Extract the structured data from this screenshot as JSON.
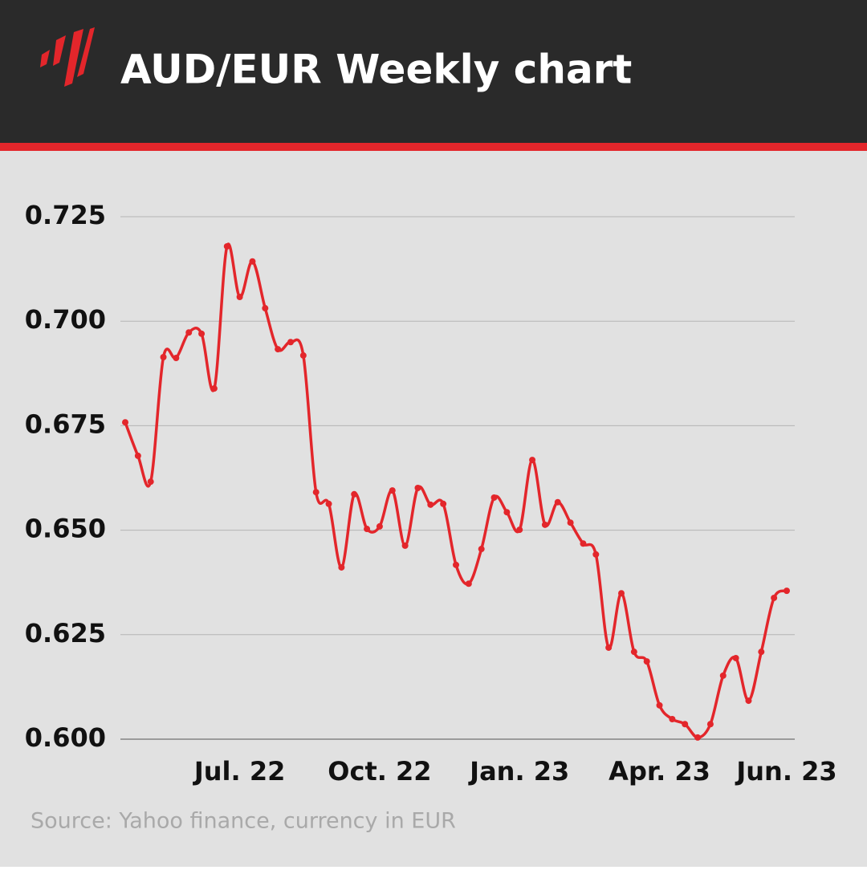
{
  "chart_data": {
    "type": "line",
    "title": "AUD/EUR Weekly chart",
    "source": "Source: Yahoo finance, currency in EUR",
    "categories": [
      null,
      null,
      null,
      null,
      null,
      null,
      null,
      null,
      null,
      "Jul. 22",
      null,
      null,
      null,
      null,
      null,
      null,
      null,
      null,
      null,
      null,
      "Oct. 22",
      null,
      null,
      null,
      null,
      null,
      null,
      null,
      null,
      null,
      null,
      "Jan. 23",
      null,
      null,
      null,
      null,
      null,
      null,
      null,
      null,
      null,
      null,
      "Apr. 23",
      null,
      null,
      null,
      null,
      null,
      null,
      null,
      null,
      null,
      "Jun. 23"
    ],
    "series": [
      {
        "name": "AUD/EUR",
        "color": "#e3262b",
        "values": [
          0.6758,
          0.6678,
          0.6616,
          0.6914,
          0.6912,
          0.6973,
          0.697,
          0.6839,
          0.7179,
          0.7058,
          0.7143,
          0.7031,
          0.6933,
          0.695,
          0.6918,
          0.6591,
          0.6563,
          0.6411,
          0.6586,
          0.6503,
          0.6509,
          0.6595,
          0.6463,
          0.6601,
          0.6561,
          0.6563,
          0.6417,
          0.6372,
          0.6455,
          0.6578,
          0.6543,
          0.6501,
          0.6668,
          0.6513,
          0.6567,
          0.6518,
          0.6468,
          0.6442,
          0.6219,
          0.6349,
          0.6209,
          0.6186,
          0.6081,
          0.6048,
          0.6036,
          0.6004,
          0.6036,
          0.6152,
          0.6194,
          0.6092,
          0.6209,
          0.6338,
          0.6355
        ]
      }
    ],
    "ylim": [
      0.6,
      0.725
    ],
    "yticks": [
      {
        "value": 0.6,
        "label": "0.600"
      },
      0.625,
      {
        "value": 0.65,
        "label": "0.650"
      },
      0.675,
      {
        "value": 0.7,
        "label": "0.700"
      },
      0.725
    ],
    "grid": true
  }
}
